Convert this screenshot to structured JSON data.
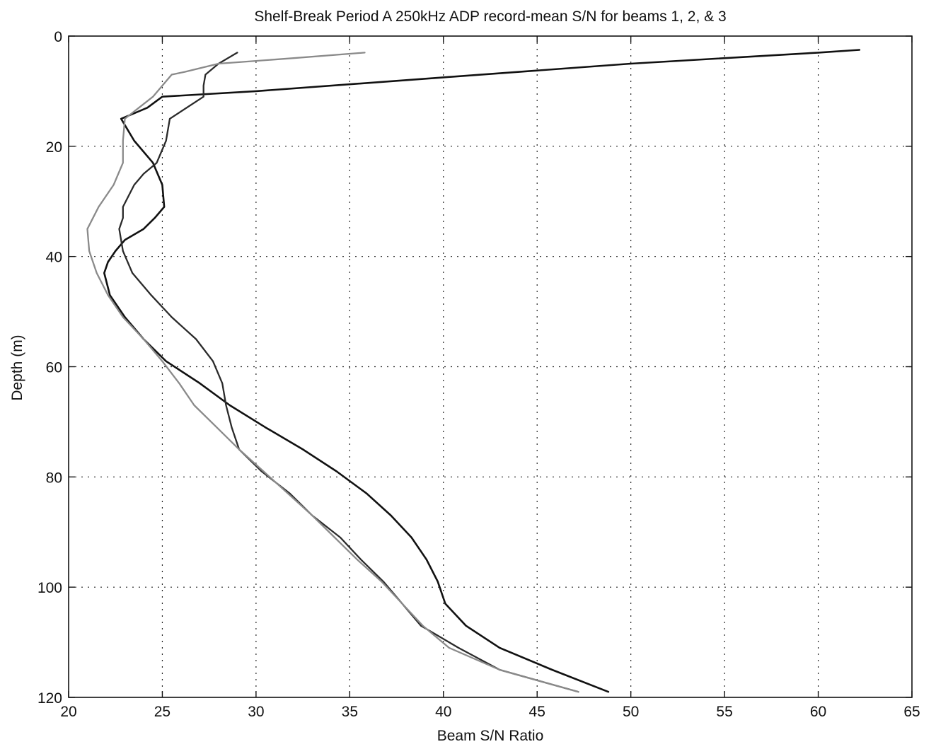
{
  "chart_data": {
    "type": "line",
    "title": "Shelf-Break Period A 250kHz ADP record-mean S/N for beams 1, 2, & 3",
    "xlabel": "Beam S/N Ratio",
    "ylabel": "Depth (m)",
    "xlim": [
      20,
      65
    ],
    "ylim": [
      0,
      120
    ],
    "y_reversed": true,
    "grid": true,
    "xticks": [
      "20",
      "25",
      "30",
      "35",
      "40",
      "45",
      "50",
      "55",
      "60",
      "65"
    ],
    "yticks": [
      "0",
      "20",
      "40",
      "60",
      "80",
      "100",
      "120"
    ],
    "series": [
      {
        "color": "#111111",
        "width": 2.6,
        "points": [
          [
            62.2,
            2.5
          ],
          [
            60.0,
            3.0
          ],
          [
            50.0,
            5.0
          ],
          [
            40.0,
            7.5
          ],
          [
            30.0,
            10.0
          ],
          [
            25.0,
            11.0
          ],
          [
            24.2,
            13.0
          ],
          [
            22.8,
            15.0
          ],
          [
            23.5,
            19.0
          ],
          [
            24.5,
            23.0
          ],
          [
            25.0,
            27.0
          ],
          [
            25.1,
            31.0
          ],
          [
            24.6,
            33.0
          ],
          [
            24.0,
            35.0
          ],
          [
            23.0,
            37.0
          ],
          [
            22.5,
            39.0
          ],
          [
            22.1,
            41.0
          ],
          [
            21.9,
            43.0
          ],
          [
            22.2,
            47.0
          ],
          [
            23.0,
            51.0
          ],
          [
            24.0,
            55.0
          ],
          [
            25.2,
            59.0
          ],
          [
            27.0,
            63.0
          ],
          [
            28.6,
            67.0
          ],
          [
            30.5,
            71.0
          ],
          [
            32.5,
            75.0
          ],
          [
            34.3,
            79.0
          ],
          [
            35.9,
            83.0
          ],
          [
            37.2,
            87.0
          ],
          [
            38.3,
            91.0
          ],
          [
            39.1,
            95.0
          ],
          [
            39.7,
            99.0
          ],
          [
            40.1,
            103.0
          ],
          [
            41.2,
            107.0
          ],
          [
            43.0,
            111.0
          ],
          [
            45.8,
            115.0
          ],
          [
            48.8,
            119.0
          ]
        ]
      },
      {
        "color": "#2a2a2a",
        "width": 2.3,
        "points": [
          [
            29.0,
            3.0
          ],
          [
            28.0,
            5.0
          ],
          [
            27.3,
            7.0
          ],
          [
            27.2,
            9.0
          ],
          [
            27.2,
            11.0
          ],
          [
            25.4,
            15.0
          ],
          [
            25.2,
            19.0
          ],
          [
            24.7,
            23.0
          ],
          [
            24.0,
            25.0
          ],
          [
            23.5,
            27.0
          ],
          [
            22.9,
            31.0
          ],
          [
            22.9,
            33.0
          ],
          [
            22.7,
            35.0
          ],
          [
            22.9,
            39.0
          ],
          [
            23.4,
            43.0
          ],
          [
            24.4,
            47.0
          ],
          [
            25.5,
            51.0
          ],
          [
            26.8,
            55.0
          ],
          [
            27.7,
            59.0
          ],
          [
            28.2,
            63.0
          ],
          [
            28.4,
            67.0
          ],
          [
            28.7,
            71.0
          ],
          [
            29.1,
            75.0
          ],
          [
            30.3,
            79.0
          ],
          [
            31.8,
            83.0
          ],
          [
            33.0,
            87.0
          ],
          [
            34.5,
            91.0
          ],
          [
            35.6,
            95.0
          ],
          [
            36.8,
            99.0
          ],
          [
            37.8,
            103.0
          ],
          [
            38.8,
            107.0
          ],
          [
            40.8,
            111.0
          ],
          [
            43.0,
            115.0
          ],
          [
            47.2,
            119.0
          ]
        ]
      },
      {
        "color": "#8a8a8a",
        "width": 2.3,
        "points": [
          [
            35.8,
            3.0
          ],
          [
            32.0,
            4.0
          ],
          [
            28.0,
            5.0
          ],
          [
            26.2,
            6.5
          ],
          [
            25.5,
            7.0
          ],
          [
            24.5,
            11.0
          ],
          [
            23.0,
            15.0
          ],
          [
            22.9,
            19.0
          ],
          [
            22.9,
            23.0
          ],
          [
            22.4,
            27.0
          ],
          [
            21.6,
            31.0
          ],
          [
            21.0,
            35.0
          ],
          [
            21.1,
            39.0
          ],
          [
            21.5,
            43.0
          ],
          [
            22.1,
            47.0
          ],
          [
            22.9,
            51.0
          ],
          [
            24.0,
            55.0
          ],
          [
            25.0,
            59.0
          ],
          [
            25.9,
            63.0
          ],
          [
            26.7,
            67.0
          ],
          [
            27.9,
            71.0
          ],
          [
            29.1,
            75.0
          ],
          [
            30.4,
            79.0
          ],
          [
            31.7,
            83.0
          ],
          [
            33.0,
            87.0
          ],
          [
            34.2,
            91.0
          ],
          [
            35.4,
            95.0
          ],
          [
            36.7,
            99.0
          ],
          [
            37.8,
            103.0
          ],
          [
            38.9,
            107.0
          ],
          [
            40.3,
            111.0
          ],
          [
            43.0,
            115.0
          ],
          [
            47.2,
            119.0
          ]
        ]
      }
    ]
  }
}
